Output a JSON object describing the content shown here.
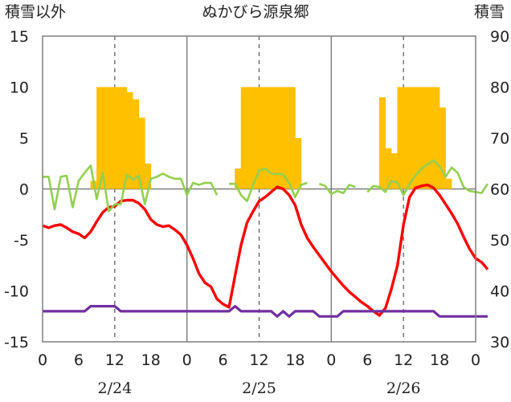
{
  "chart_data": {
    "type": "bar+line",
    "title": "ぬかびら源泉郷",
    "ylabel_left": "積雪以外",
    "ylabel_right": "積雪",
    "ylim_left": [
      -15,
      15
    ],
    "yticks_left": [
      "15",
      "10",
      "5",
      "0",
      "-5",
      "-10",
      "-15"
    ],
    "ylim_right": [
      30,
      90
    ],
    "yticks_right": [
      "90",
      "80",
      "70",
      "60",
      "50",
      "40",
      "30"
    ],
    "x_hours": [
      0,
      72
    ],
    "x_tick_labels": [
      "0",
      "6",
      "12",
      "18",
      "0",
      "6",
      "12",
      "18",
      "0",
      "6",
      "12",
      "18",
      "0"
    ],
    "dates": [
      "2/24",
      "2/25",
      "2/26"
    ],
    "grid": {
      "day_boundaries": "solid",
      "noon": "dashed",
      "zero_line": true
    },
    "colors": {
      "bar": "#FFC000",
      "red": "#FF0000",
      "green": "#92D050",
      "purple": "#7030A0",
      "axis": "#7f7f7f"
    },
    "bars_left_units": [
      [
        8,
        0.8
      ],
      [
        9,
        10
      ],
      [
        10,
        10
      ],
      [
        11,
        10
      ],
      [
        12,
        10
      ],
      [
        13,
        10
      ],
      [
        14,
        9.5
      ],
      [
        15,
        8.8
      ],
      [
        16,
        7
      ],
      [
        17,
        2.5
      ],
      [
        32,
        2
      ],
      [
        33,
        10
      ],
      [
        34,
        10
      ],
      [
        35,
        10
      ],
      [
        36,
        10
      ],
      [
        37,
        10
      ],
      [
        38,
        10
      ],
      [
        39,
        10
      ],
      [
        40,
        10
      ],
      [
        41,
        10
      ],
      [
        42,
        5
      ],
      [
        56,
        9
      ],
      [
        57,
        4
      ],
      [
        58,
        3.5
      ],
      [
        59,
        10
      ],
      [
        60,
        10
      ],
      [
        61,
        10
      ],
      [
        62,
        10
      ],
      [
        63,
        10
      ],
      [
        64,
        10
      ],
      [
        65,
        10
      ],
      [
        66,
        8
      ],
      [
        67,
        1
      ]
    ],
    "series": [
      {
        "color": "red",
        "points": [
          [
            0,
            -3.6
          ],
          [
            1,
            -3.8
          ],
          [
            2,
            -3.6
          ],
          [
            3,
            -3.5
          ],
          [
            4,
            -3.8
          ],
          [
            5,
            -4.2
          ],
          [
            6,
            -4.4
          ],
          [
            7,
            -4.8
          ],
          [
            8,
            -4.2
          ],
          [
            9,
            -3.2
          ],
          [
            10,
            -2.3
          ],
          [
            11,
            -1.8
          ],
          [
            12,
            -1.7
          ],
          [
            13,
            -1.2
          ],
          [
            14,
            -1.1
          ],
          [
            15,
            -1.1
          ],
          [
            16,
            -1.4
          ],
          [
            17,
            -2
          ],
          [
            18,
            -3
          ],
          [
            19,
            -3.5
          ],
          [
            20,
            -3.7
          ],
          [
            21,
            -3.6
          ],
          [
            22,
            -4
          ],
          [
            23,
            -4.5
          ],
          [
            24,
            -5.5
          ],
          [
            25,
            -6.8
          ],
          [
            26,
            -8.3
          ],
          [
            27,
            -9.2
          ],
          [
            28,
            -9.6
          ],
          [
            29,
            -10.8
          ],
          [
            30,
            -11.3
          ],
          [
            31,
            -11.6
          ],
          [
            32,
            -8.5
          ],
          [
            33,
            -5.5
          ],
          [
            34,
            -3.3
          ],
          [
            35,
            -2.2
          ],
          [
            36,
            -1.2
          ],
          [
            37,
            -0.8
          ],
          [
            38,
            -0.3
          ],
          [
            39,
            0.2
          ],
          [
            40,
            0
          ],
          [
            41,
            -0.6
          ],
          [
            42,
            -1.6
          ],
          [
            43,
            -3.5
          ],
          [
            44,
            -4.8
          ],
          [
            45,
            -5.7
          ],
          [
            46,
            -6.5
          ],
          [
            47,
            -7.3
          ],
          [
            48,
            -8.1
          ],
          [
            49,
            -8.8
          ],
          [
            50,
            -9.5
          ],
          [
            51,
            -10.1
          ],
          [
            52,
            -10.6
          ],
          [
            53,
            -11.1
          ],
          [
            54,
            -11.5
          ],
          [
            55,
            -12
          ],
          [
            56,
            -12.4
          ],
          [
            57,
            -11.7
          ],
          [
            58,
            -9.8
          ],
          [
            59,
            -7.5
          ],
          [
            60,
            -3.5
          ],
          [
            61,
            -0.8
          ],
          [
            62,
            0.1
          ],
          [
            63,
            0.3
          ],
          [
            64,
            0.4
          ],
          [
            65,
            0.1
          ],
          [
            66,
            -0.6
          ],
          [
            67,
            -1.5
          ],
          [
            68,
            -2.4
          ],
          [
            69,
            -3.4
          ],
          [
            70,
            -4.7
          ],
          [
            71,
            -5.9
          ],
          [
            72,
            -6.8
          ],
          [
            73,
            -7.2
          ],
          [
            74,
            -7.9
          ]
        ]
      },
      {
        "color": "green",
        "segments": [
          [
            [
              0,
              1.2
            ],
            [
              1,
              1.2
            ],
            [
              2,
              -2
            ],
            [
              3,
              1.2
            ],
            [
              4,
              1.3
            ],
            [
              5,
              -1.8
            ],
            [
              6,
              0.8
            ],
            [
              7,
              1.6
            ],
            [
              8,
              2.3
            ],
            [
              9,
              -1
            ],
            [
              10,
              1.6
            ],
            [
              11,
              -2.2
            ],
            [
              12,
              -1.5
            ],
            [
              13,
              -1.5
            ],
            [
              14,
              1.4
            ],
            [
              15,
              0.9
            ],
            [
              16,
              1.3
            ],
            [
              17,
              -1.5
            ],
            [
              18,
              1
            ],
            [
              19,
              1.2
            ],
            [
              20,
              1.5
            ],
            [
              21,
              1.2
            ],
            [
              22,
              1
            ],
            [
              23,
              1
            ],
            [
              24,
              -0.6
            ],
            [
              25,
              0.6
            ],
            [
              26,
              0.4
            ],
            [
              27,
              0.6
            ],
            [
              28,
              0.6
            ],
            [
              29,
              -0.6
            ]
          ],
          [
            [
              31,
              0.5
            ],
            [
              32,
              0.5
            ],
            [
              33,
              -0.6
            ],
            [
              34,
              -1.2
            ],
            [
              35,
              0.4
            ],
            [
              36,
              1.8
            ],
            [
              37,
              2
            ],
            [
              38,
              1.5
            ],
            [
              39,
              1.5
            ],
            [
              40,
              1.4
            ],
            [
              41,
              0.6
            ],
            [
              42,
              -0.8
            ],
            [
              43,
              0.4
            ],
            [
              44,
              0.6
            ]
          ],
          [
            [
              46,
              0.5
            ],
            [
              47,
              0.3
            ],
            [
              48,
              -0.5
            ],
            [
              49,
              -0.2
            ],
            [
              50,
              -0.4
            ],
            [
              51,
              0.4
            ],
            [
              52,
              0.2
            ]
          ],
          [
            [
              54,
              -0.3
            ],
            [
              55,
              0.3
            ],
            [
              56,
              0.2
            ],
            [
              57,
              -0.3
            ],
            [
              58,
              0.8
            ],
            [
              59,
              0.6
            ],
            [
              60,
              -0.6
            ],
            [
              61,
              0.5
            ],
            [
              62,
              1.3
            ],
            [
              63,
              2
            ],
            [
              64,
              2.4
            ],
            [
              65,
              2.8
            ],
            [
              66,
              2.2
            ],
            [
              67,
              1.2
            ],
            [
              68,
              2.1
            ],
            [
              69,
              1.6
            ],
            [
              70,
              0.2
            ],
            [
              71,
              -0.2
            ],
            [
              72,
              -0.3
            ],
            [
              73,
              -0.4
            ],
            [
              74,
              0.5
            ]
          ]
        ]
      },
      {
        "color": "purple",
        "points": [
          [
            0,
            -12
          ],
          [
            7,
            -12
          ],
          [
            8,
            -11.5
          ],
          [
            12,
            -11.5
          ],
          [
            13,
            -12
          ],
          [
            31,
            -12
          ],
          [
            32,
            -11.5
          ],
          [
            33,
            -12
          ],
          [
            38,
            -12
          ],
          [
            39,
            -12.5
          ],
          [
            40,
            -12
          ],
          [
            41,
            -12.5
          ],
          [
            42,
            -12
          ],
          [
            45,
            -12
          ],
          [
            46,
            -12.5
          ],
          [
            49,
            -12.5
          ],
          [
            50,
            -12
          ],
          [
            58,
            -12
          ],
          [
            65,
            -12
          ],
          [
            66,
            -12.5
          ],
          [
            74,
            -12.5
          ]
        ]
      }
    ]
  }
}
